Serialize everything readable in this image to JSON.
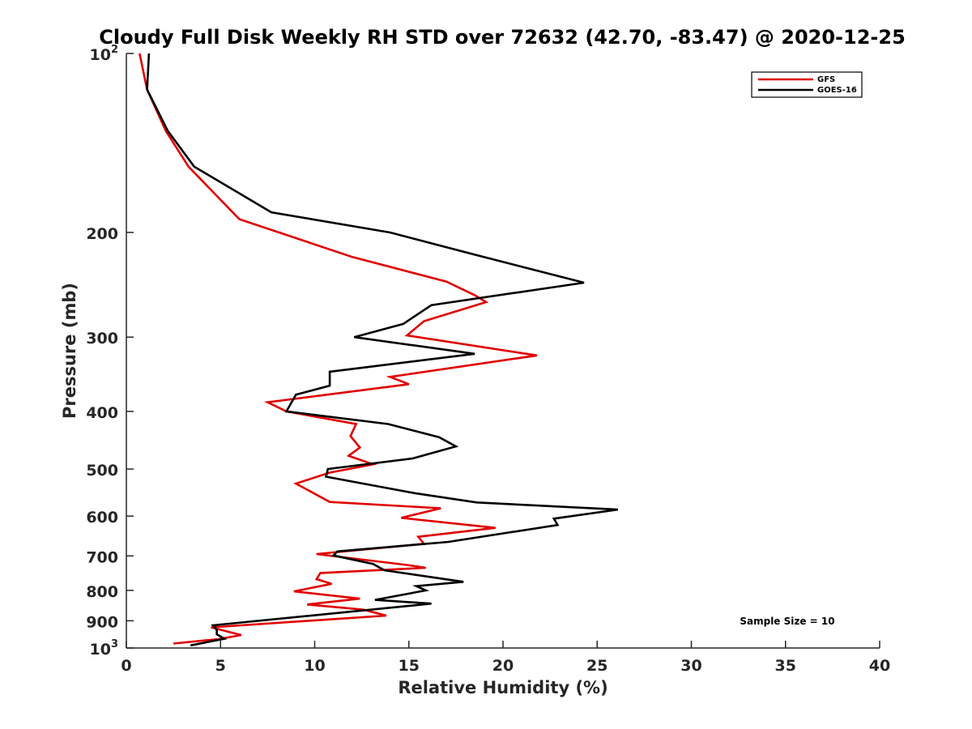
{
  "chart_data": {
    "type": "line",
    "title": "Cloudy Full Disk Weekly RH STD over 72632 (42.70, -83.47) @ 2020-12-25",
    "xlabel": "Relative Humidity (%)",
    "ylabel": "Pressure (mb)",
    "xlim": [
      0,
      40
    ],
    "ylim": [
      100,
      1000
    ],
    "yscale": "log",
    "y_reversed": true,
    "grid": false,
    "x_ticks": [
      0,
      5,
      10,
      15,
      20,
      25,
      30,
      35,
      40
    ],
    "x_tick_labels": [
      "0",
      "5",
      "10",
      "15",
      "20",
      "25",
      "30",
      "35",
      "40"
    ],
    "y_ticks": [
      100,
      200,
      300,
      400,
      500,
      600,
      700,
      800,
      900,
      1000
    ],
    "y_tick_labels": [
      {
        "base": "10",
        "sup": "2"
      },
      {
        "base": "200",
        "sup": ""
      },
      {
        "base": "300",
        "sup": ""
      },
      {
        "base": "400",
        "sup": ""
      },
      {
        "base": "500",
        "sup": ""
      },
      {
        "base": "600",
        "sup": ""
      },
      {
        "base": "700",
        "sup": ""
      },
      {
        "base": "800",
        "sup": ""
      },
      {
        "base": "900",
        "sup": ""
      },
      {
        "base": "10",
        "sup": "3"
      }
    ],
    "legend_position": "top-right",
    "annotation": "Sample Size = 10",
    "series": [
      {
        "name": "GFS",
        "color": "#e00000",
        "points": [
          [
            0.7,
            100
          ],
          [
            1.1,
            115
          ],
          [
            2.1,
            135
          ],
          [
            3.3,
            155
          ],
          [
            6.0,
            190
          ],
          [
            12.0,
            220
          ],
          [
            17.0,
            242
          ],
          [
            18.5,
            255
          ],
          [
            19.1,
            262
          ],
          [
            15.8,
            282
          ],
          [
            14.9,
            298
          ],
          [
            21.8,
            322
          ],
          [
            14.0,
            350
          ],
          [
            15.0,
            360
          ],
          [
            7.5,
            386
          ],
          [
            8.5,
            400
          ],
          [
            12.2,
            420
          ],
          [
            11.9,
            440
          ],
          [
            12.4,
            460
          ],
          [
            11.8,
            475
          ],
          [
            13.1,
            491
          ],
          [
            10.8,
            507
          ],
          [
            9.0,
            529
          ],
          [
            10.8,
            568
          ],
          [
            16.7,
            582
          ],
          [
            14.6,
            604
          ],
          [
            19.6,
            628
          ],
          [
            15.5,
            650
          ],
          [
            15.8,
            668
          ],
          [
            10.1,
            695
          ],
          [
            14.9,
            725
          ],
          [
            15.9,
            733
          ],
          [
            10.3,
            748
          ],
          [
            10.1,
            766
          ],
          [
            10.9,
            780
          ],
          [
            8.9,
            803
          ],
          [
            12.4,
            826
          ],
          [
            9.6,
            845
          ],
          [
            12.6,
            862
          ],
          [
            13.8,
            882
          ],
          [
            4.5,
            923
          ],
          [
            6.1,
            951
          ],
          [
            4.9,
            966
          ],
          [
            2.5,
            983
          ]
        ]
      },
      {
        "name": "GOES-16",
        "color": "#000000",
        "points": [
          [
            1.2,
            100
          ],
          [
            1.1,
            115
          ],
          [
            2.2,
            135
          ],
          [
            3.6,
            155
          ],
          [
            7.7,
            185
          ],
          [
            14.0,
            200
          ],
          [
            18.5,
            218
          ],
          [
            24.3,
            243
          ],
          [
            16.2,
            265
          ],
          [
            14.7,
            285
          ],
          [
            12.1,
            300
          ],
          [
            18.5,
            320
          ],
          [
            10.8,
            343
          ],
          [
            10.8,
            362
          ],
          [
            9.0,
            375
          ],
          [
            8.5,
            400
          ],
          [
            13.9,
            420
          ],
          [
            16.6,
            442
          ],
          [
            17.5,
            458
          ],
          [
            15.2,
            480
          ],
          [
            10.7,
            500
          ],
          [
            10.6,
            515
          ],
          [
            15.3,
            549
          ],
          [
            18.6,
            569
          ],
          [
            26.1,
            585
          ],
          [
            22.7,
            606
          ],
          [
            22.9,
            621
          ],
          [
            17.1,
            663
          ],
          [
            11.2,
            688
          ],
          [
            11.0,
            699
          ],
          [
            13.1,
            722
          ],
          [
            13.7,
            740
          ],
          [
            17.9,
            774
          ],
          [
            15.4,
            787
          ],
          [
            15.9,
            800
          ],
          [
            13.2,
            830
          ],
          [
            16.2,
            842
          ],
          [
            4.6,
            916
          ],
          [
            4.8,
            932
          ],
          [
            4.8,
            948
          ],
          [
            5.2,
            965
          ],
          [
            3.4,
            990
          ]
        ]
      }
    ]
  }
}
